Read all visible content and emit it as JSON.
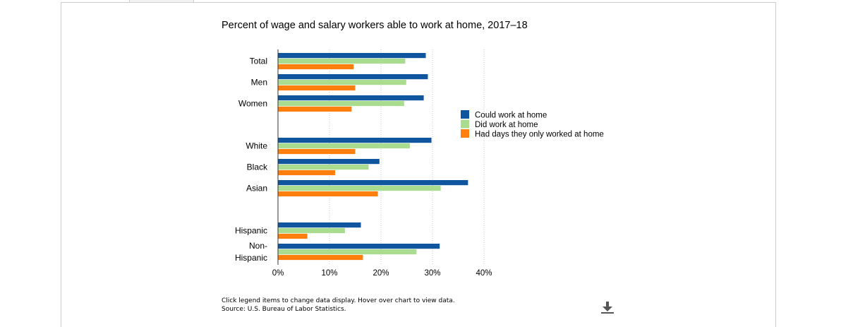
{
  "chart_data": {
    "type": "bar",
    "orientation": "horizontal",
    "title": "Percent of wage and salary workers able to work at home, 2017–18",
    "categories": [
      "Total",
      "Men",
      "Women",
      "White",
      "Black",
      "Asian",
      "Hispanic",
      "Non-Hispanic"
    ],
    "category_display": [
      [
        "Total"
      ],
      [
        "Men"
      ],
      [
        "Women"
      ],
      [
        "White"
      ],
      [
        "Black"
      ],
      [
        "Asian"
      ],
      [
        "Hispanic"
      ],
      [
        "Non-",
        "Hispanic"
      ]
    ],
    "groups": [
      [
        "Total",
        "Men",
        "Women"
      ],
      [
        "White",
        "Black",
        "Asian"
      ],
      [
        "Hispanic",
        "Non-Hispanic"
      ]
    ],
    "series": [
      {
        "name": "Could work at home",
        "color": "#0f569e",
        "values": [
          28.7,
          29.1,
          28.3,
          29.8,
          19.7,
          36.9,
          16.1,
          31.4
        ]
      },
      {
        "name": "Did work at home",
        "color": "#a9dc8f",
        "values": [
          24.7,
          24.9,
          24.5,
          25.6,
          17.6,
          31.6,
          13.0,
          26.9
        ]
      },
      {
        "name": "Had days they only worked at home",
        "color": "#ff7f0e",
        "values": [
          14.7,
          15.0,
          14.3,
          15.0,
          11.1,
          19.4,
          5.7,
          16.5
        ]
      }
    ],
    "xlim": [
      0,
      40
    ],
    "x_ticks": [
      "0%",
      "10%",
      "20%",
      "30%",
      "40%"
    ],
    "grid": true,
    "legend_position": "right"
  },
  "footer": {
    "note_line1": "Click legend items to change data display. Hover over chart to view data.",
    "note_line2": "Source: U.S. Bureau of Labor Statistics."
  },
  "icons": {
    "download": "download-icon"
  }
}
